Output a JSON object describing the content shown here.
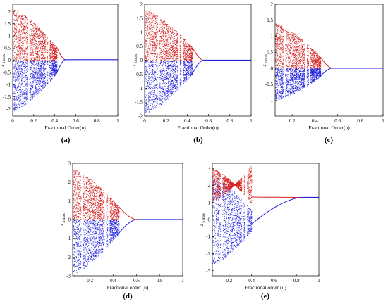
{
  "figure": {
    "colors": {
      "upper": "#d62020",
      "lower": "#2020e0",
      "frame": "#000000"
    }
  },
  "chart_data": [
    {
      "type": "scatter",
      "label": "(a)",
      "xlabel": "Fractional Order(υ)",
      "ylabel": "z1 max",
      "ylabel_main": "z",
      "ylabel_sub": "1 max",
      "xlim": [
        0,
        1
      ],
      "ylim": [
        -2.3,
        2.3
      ],
      "xticks": [
        0,
        0.2,
        0.4,
        0.6,
        0.8,
        1
      ],
      "xtick_labels": [
        "0",
        "0.2",
        "0.4",
        "0.6",
        "0.8",
        "1"
      ],
      "yticks": [
        -2,
        -1.5,
        -1,
        -0.5,
        0,
        0.5,
        1,
        1.5,
        2
      ],
      "ytick_labels": [
        "-2",
        "-1.5",
        "-1",
        "-0.5",
        "0",
        "0.5",
        "1",
        "1.5",
        "2"
      ],
      "series": [],
      "bifurcation": {
        "start": 0.0,
        "chaos_end": 0.42,
        "converge": 0.5,
        "fixed": 0.02,
        "top": 2.1,
        "bottom": -2.1,
        "windows": [
          0.15,
          0.32,
          0.34
        ]
      }
    },
    {
      "type": "scatter",
      "label": "(b)",
      "xlabel": "Fractional Order(υ)",
      "ylabel": "z2 max",
      "ylabel_main": "z",
      "ylabel_sub": "2 max",
      "xlim": [
        0,
        1
      ],
      "ylim": [
        -2,
        2
      ],
      "xticks": [
        0,
        0.2,
        0.4,
        0.6,
        0.8,
        1
      ],
      "xtick_labels": [
        "0",
        "0.2",
        "0.4",
        "0.6",
        "0.8",
        "1"
      ],
      "yticks": [
        -2,
        -1.5,
        -1,
        -0.5,
        0,
        0.5,
        1,
        1.5,
        2
      ],
      "ytick_labels": [
        "-2",
        "-1.5",
        "-1",
        "-0.5",
        "0",
        "0.5",
        "1",
        "1.5",
        "2"
      ],
      "series": [],
      "bifurcation": {
        "start": 0.0,
        "chaos_end": 0.45,
        "converge": 0.55,
        "fixed": 0.0,
        "top": 1.8,
        "bottom": -1.9,
        "windows": [
          0.13,
          0.32,
          0.35
        ]
      }
    },
    {
      "type": "scatter",
      "label": "(c)",
      "xlabel": "Fractional Order(υ)",
      "ylabel": "z3 max",
      "ylabel_main": "z",
      "ylabel_sub": "3 max",
      "xlim": [
        0.05,
        1
      ],
      "ylim": [
        -1.5,
        2
      ],
      "xticks": [
        0.2,
        0.4,
        0.6,
        0.8,
        1
      ],
      "xtick_labels": [
        "0.2",
        "0.4",
        "0.6",
        "0.8",
        "1"
      ],
      "yticks": [
        -1,
        -0.5,
        0,
        0.5,
        1,
        1.5,
        2
      ],
      "ytick_labels": [
        "-1",
        "-0.5",
        "0",
        "0.5",
        "1",
        "1.5",
        "2"
      ],
      "series": [],
      "bifurcation": {
        "start": 0.05,
        "chaos_end": 0.45,
        "converge": 0.55,
        "fixed": 0.0,
        "top": 1.4,
        "bottom": -1.0,
        "windows": [
          0.13,
          0.32,
          0.35
        ]
      }
    },
    {
      "type": "scatter",
      "label": "(d)",
      "xlabel": "Fractional order (υ)",
      "ylabel": "z4 max",
      "ylabel_main": "z",
      "ylabel_sub": "4 max",
      "xlim": [
        0.05,
        1
      ],
      "ylim": [
        -3,
        3
      ],
      "xticks": [
        0.2,
        0.4,
        0.6,
        0.8,
        1
      ],
      "xtick_labels": [
        "0.2",
        "0.4",
        "0.6",
        "0.8",
        "1"
      ],
      "yticks": [
        -3,
        -2,
        -1,
        0,
        1,
        2,
        3
      ],
      "ytick_labels": [
        "-3",
        "-2",
        "-1",
        "0",
        "1",
        "2",
        "3"
      ],
      "series": [],
      "bifurcation": {
        "start": 0.05,
        "chaos_end": 0.45,
        "converge": 0.6,
        "fixed": 0.0,
        "top": 2.7,
        "bottom": -2.9,
        "windows": [
          0.13,
          0.33,
          0.36
        ]
      }
    },
    {
      "type": "scatter",
      "label": "(e)",
      "xlabel": "Fractional order (υ)",
      "ylabel": "z5 max",
      "ylabel_main": "z",
      "ylabel_sub": "5 max",
      "xlim": [
        0.05,
        1
      ],
      "ylim": [
        -3.3,
        3.3
      ],
      "xticks": [
        0.2,
        0.4,
        0.6,
        0.8,
        1
      ],
      "xtick_labels": [
        "0.2",
        "0.4",
        "0.6",
        "0.8",
        "1"
      ],
      "yticks": [
        -3,
        -2,
        -1,
        0,
        1,
        2,
        3
      ],
      "ytick_labels": [
        "-3",
        "-2",
        "-1",
        "0",
        "1",
        "2",
        "3"
      ],
      "series": [],
      "bifurcation": {
        "start": 0.05,
        "chaos_end": 0.4,
        "converge": 0.85,
        "fixed": 1.3,
        "branches": [
          2.2,
          1.9,
          0.35,
          -0.45
        ],
        "top": 3.1,
        "bottom": -2.9,
        "windows": [
          0.13,
          0.32,
          0.35
        ]
      }
    }
  ]
}
